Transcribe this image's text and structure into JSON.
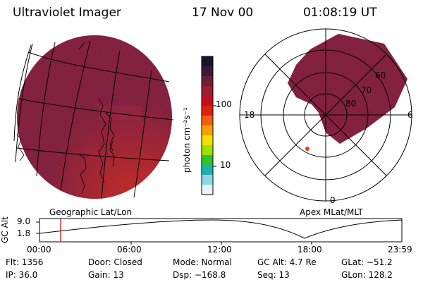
{
  "header": {
    "title": "Ultraviolet Imager",
    "date": "17 Nov 00",
    "time": "01:08:19 UT"
  },
  "colorbar": {
    "unit_label": "photon cm⁻²s⁻¹",
    "ticks": [
      "100",
      "10"
    ],
    "colors": [
      "#1e1030",
      "#3a1a3c",
      "#6a1f3a",
      "#9a2030",
      "#c01020",
      "#e02010",
      "#f06010",
      "#f8a000",
      "#f0e000",
      "#a0e000",
      "#30c030",
      "#20b0b0",
      "#90d8e8",
      "#e8f0f8"
    ]
  },
  "left_panel": {
    "label": "Geographic Lat/Lon",
    "fill_color": "#8a1f3a"
  },
  "right_panel": {
    "label": "Apex MLat/MLT",
    "ring_labels": [
      "60",
      "70",
      "80"
    ],
    "mlt_labels": [
      "18",
      "6",
      "0"
    ]
  },
  "altitude_plot": {
    "axis_label": "GC Alt",
    "y_ticks": [
      "9.0",
      "1.8"
    ],
    "x_ticks": [
      "00:00",
      "06:00",
      "12:00",
      "18:00",
      "23:59"
    ],
    "marker_color": "#d00000"
  },
  "info": {
    "flt": "Flt: 1356",
    "ip": "IP: 36.0",
    "door": "Door: Closed",
    "gain": "Gain: 13",
    "mode": "Mode: Normal",
    "dsp": "Dsp: −168.8",
    "gcalt": "GC Alt: 4.7 Re",
    "seq": "Seq: 13",
    "glat": "GLat: −51.2",
    "glon": "GLon: 128.2"
  }
}
